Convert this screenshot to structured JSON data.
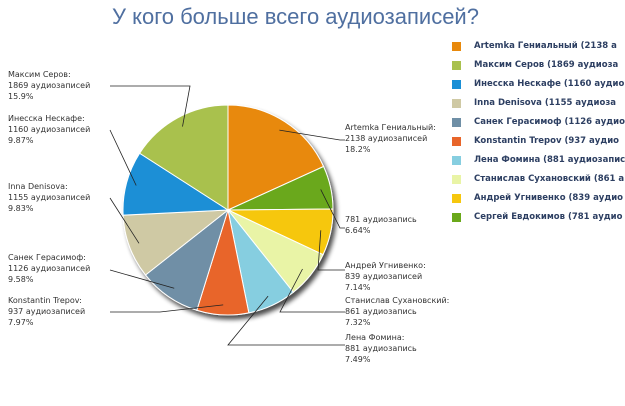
{
  "title": "У кого больше всего аудиозаписей?",
  "chart_data": {
    "type": "pie",
    "title": "У кого больше всего аудиозаписей?",
    "slices": [
      {
        "name": "Artemka Гениальный",
        "value": 2138,
        "percent": "18.2%",
        "color": "#e8890c",
        "callout": [
          "Artemka Гениальный:",
          "2138 аудиозаписей",
          "18.2%"
        ],
        "legend": "Artemka Гениальный (2138 а"
      },
      {
        "name": "",
        "value": 781,
        "percent": "6.64%",
        "color": "#6aa81a",
        "callout": [
          "781 аудиозапись",
          "6.64%"
        ],
        "legend": "Сергей Евдокимов (781 аудио"
      },
      {
        "name": "Андрей Угнивенко",
        "value": 839,
        "percent": "7.14%",
        "color": "#f6c70e",
        "callout": [
          "Андрей Угнивенко:",
          "839 аудиозаписей",
          "7.14%"
        ],
        "legend": "Андрей Угнивенко (839 аудио"
      },
      {
        "name": "Станислав Сухановский",
        "value": 861,
        "percent": "7.32%",
        "color": "#e9f4a6",
        "callout": [
          "Станислав Сухановский:",
          "861 аудиозапись",
          "7.32%"
        ],
        "legend": "Станислав Сухановский (861 а"
      },
      {
        "name": "Лена Фомина",
        "value": 881,
        "percent": "7.49%",
        "color": "#86cee0",
        "callout": [
          "Лена Фомина:",
          "881 аудиозапись",
          "7.49%"
        ],
        "legend": "Лена Фомина (881 аудиозапис"
      },
      {
        "name": "Konstantin Trepov",
        "value": 937,
        "percent": "7.97%",
        "color": "#e8652a",
        "callout": [
          "Konstantin Trepov:",
          "937 аудиозаписей",
          "7.97%"
        ],
        "legend": "Konstantin Trepov (937 аудио"
      },
      {
        "name": "Санек Герасимоф",
        "value": 1126,
        "percent": "9.58%",
        "color": "#6f8fa6",
        "callout": [
          "Санек Герасимоф:",
          "1126 аудиозаписей",
          "9.58%"
        ],
        "legend": "Санек Герасимоф (1126 аудио"
      },
      {
        "name": "Inna Denisova",
        "value": 1155,
        "percent": "9.83%",
        "color": "#cfc9a4",
        "callout": [
          "Inna Denisova:",
          "1155 аудиозаписей",
          "9.83%"
        ],
        "legend": "Inna Denisova (1155 аудиоза"
      },
      {
        "name": "Инесска Нескафе",
        "value": 1160,
        "percent": "9.87%",
        "color": "#1a8fd6",
        "callout": [
          "Инесска Нескафе:",
          "1160 аудиозаписей",
          "9.87%"
        ],
        "legend": "Инесска Нескафе (1160 аудио"
      },
      {
        "name": "Максим Серов",
        "value": 1869,
        "percent": "15.9%",
        "color": "#a9c14e",
        "callout": [
          "Максим Серов:",
          "1869 аудиозаписей",
          "15.9%"
        ],
        "legend": "Максим Серов (1869 аудиоза"
      }
    ],
    "legend_order": [
      0,
      9,
      8,
      7,
      6,
      5,
      4,
      3,
      2,
      1
    ],
    "legend_placement": "right"
  }
}
